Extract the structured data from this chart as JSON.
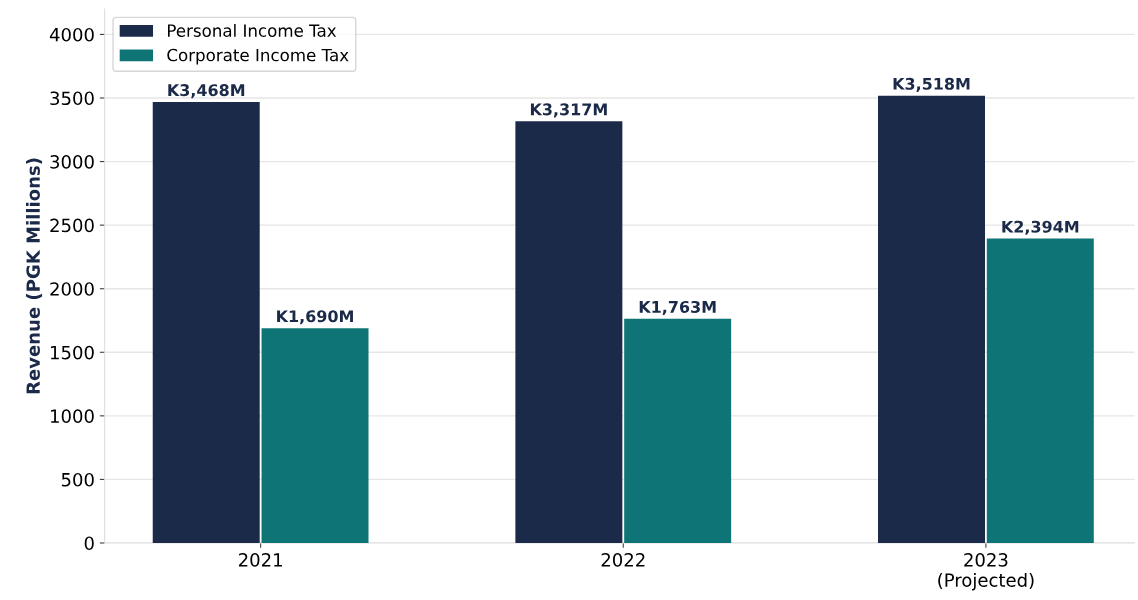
{
  "chart_data": {
    "type": "bar",
    "ylabel": "Revenue (PGK Millions)",
    "categories": [
      "2021",
      "2022",
      "2023\n(Projected)"
    ],
    "series": [
      {
        "name": "Personal Income Tax",
        "color": "#1c2a4a",
        "values": [
          3468,
          3317,
          3518
        ],
        "value_labels": [
          "K3,468M",
          "K3,317M",
          "K3,518M"
        ]
      },
      {
        "name": "Corporate Income Tax",
        "color": "#0f7475",
        "values": [
          1690,
          1763,
          2394
        ],
        "value_labels": [
          "K1,690M",
          "K1,763M",
          "K2,394M"
        ]
      }
    ],
    "ylim": [
      0,
      4200
    ],
    "yticks": [
      0,
      500,
      1000,
      1500,
      2000,
      2500,
      3000,
      3500,
      4000
    ],
    "grid": "y",
    "legend": "top left"
  }
}
